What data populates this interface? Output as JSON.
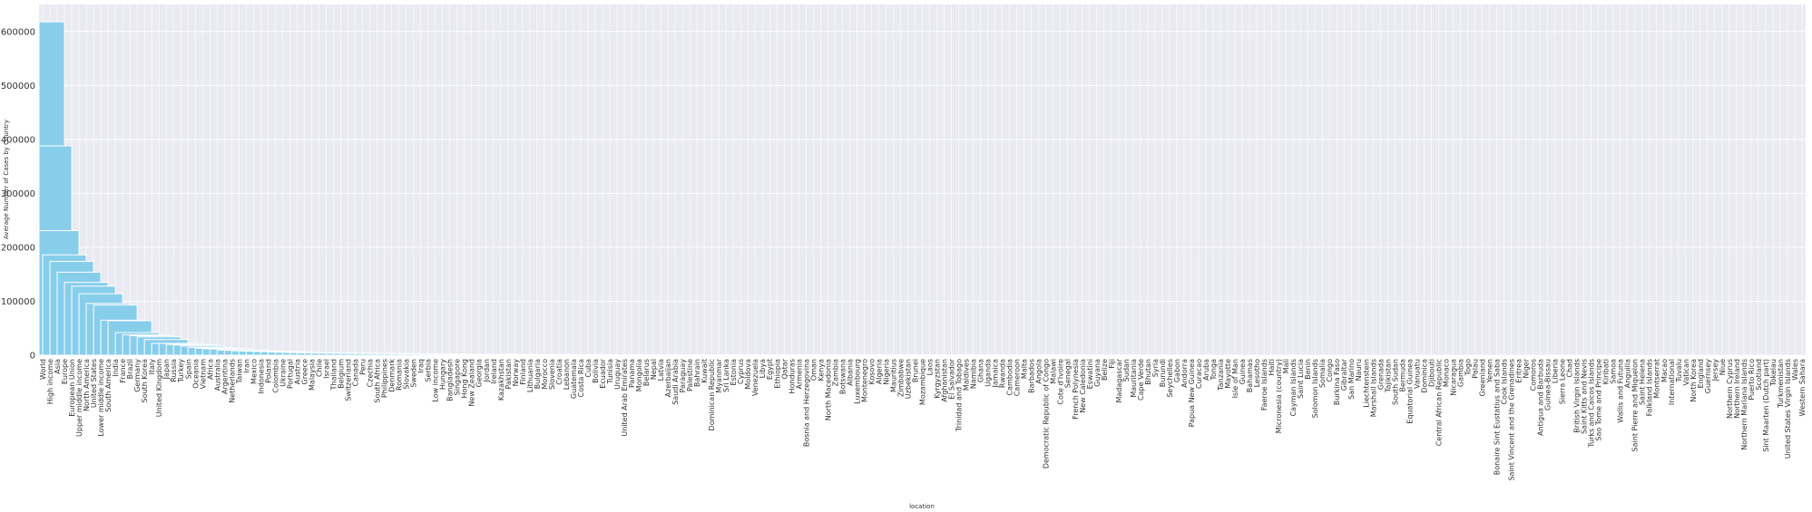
{
  "chart_data": {
    "type": "bar",
    "title": "",
    "xlabel": "location",
    "ylabel": "Average Number of Cases by Country",
    "ylim": [
      0,
      650000
    ],
    "yticks": [
      0,
      100000,
      200000,
      300000,
      400000,
      500000,
      600000
    ],
    "grid": true,
    "colors": {
      "bar": "#87CEEB",
      "bar_edge": "#ffffff",
      "plot_bg": "#EAEAF2",
      "grid": "#ffffff"
    },
    "categories": [
      "World",
      "High income",
      "Asia",
      "Europe",
      "European Union",
      "Upper middle income",
      "North America",
      "United States",
      "Lower middle income",
      "South America",
      "India",
      "France",
      "Brazil",
      "Germany",
      "South Korea",
      "Italy",
      "United Kingdom",
      "Japan",
      "Russia",
      "Turkey",
      "Spain",
      "Oceania",
      "Vietnam",
      "Africa",
      "Australia",
      "Argentina",
      "Netherlands",
      "Taiwan",
      "Iran",
      "Mexico",
      "Indonesia",
      "Poland",
      "Colombia",
      "Ukraine",
      "Portugal",
      "Austria",
      "Greece",
      "Malaysia",
      "Chile",
      "Israel",
      "Thailand",
      "Belgium",
      "Switzerland",
      "Canada",
      "Peru",
      "Czechia",
      "South Africa",
      "Philippines",
      "Denmark",
      "Romania",
      "Slovakia",
      "Sweden",
      "Iraq",
      "Serbia",
      "Low income",
      "Hungary",
      "Bangladesh",
      "Singapore",
      "Hong Kong",
      "New Zealand",
      "Georgia",
      "Jordan",
      "Ireland",
      "Kazakhstan",
      "Pakistan",
      "Norway",
      "Finland",
      "Lithuania",
      "Bulgaria",
      "Morocco",
      "Slovenia",
      "Croatia",
      "Lebanon",
      "Guatemala",
      "Costa Rica",
      "Cuba",
      "Bolivia",
      "Ecuador",
      "Tunisia",
      "Uruguay",
      "United Arab Emirates",
      "Panama",
      "Mongolia",
      "Belarus",
      "Nepal",
      "Latvia",
      "Azerbaijan",
      "Saudi Arabia",
      "Paraguay",
      "Palestine",
      "Bahrain",
      "Kuwait",
      "Dominican Republic",
      "Myanmar",
      "Sri Lanka",
      "Estonia",
      "Cyprus",
      "Moldova",
      "Venezuela",
      "Libya",
      "Egypt",
      "Ethiopia",
      "Qatar",
      "Honduras",
      "Armenia",
      "Bosnia and Herzegovina",
      "Oman",
      "Kenya",
      "North Macedonia",
      "Zambia",
      "Botswana",
      "Albania",
      "Luxembourg",
      "Montenegro",
      "Kosovo",
      "Algeria",
      "Nigeria",
      "Mauritius",
      "Zimbabwe",
      "Uzbekistan",
      "Brunei",
      "Mozambique",
      "Laos",
      "Kyrgyzstan",
      "Afghanistan",
      "El Salvador",
      "Trinidad and Tobago",
      "Maldives",
      "Namibia",
      "Ghana",
      "Uganda",
      "Jamaica",
      "Rwanda",
      "Cambodia",
      "Cameroon",
      "Malta",
      "Barbados",
      "Angola",
      "Democratic Republic of Congo",
      "Malawi",
      "Cote d'Ivoire",
      "Senegal",
      "French Polynesia",
      "New Caledonia",
      "Eswatini",
      "Guyana",
      "Belize",
      "Fiji",
      "Madagascar",
      "Sudan",
      "Mauritania",
      "Cape Verde",
      "Bhutan",
      "Syria",
      "Burundi",
      "Seychelles",
      "Gabon",
      "Andorra",
      "Papua New Guinea",
      "Curacao",
      "Aruba",
      "Tonga",
      "Tanzania",
      "Mayotte",
      "Isle of Man",
      "Guinea",
      "Bahamas",
      "Lesotho",
      "Faeroe Islands",
      "Haiti",
      "Micronesia (country)",
      "Mali",
      "Cayman Islands",
      "Saint Lucia",
      "Benin",
      "Solomon Islands",
      "Somalia",
      "Congo",
      "Burkina Faso",
      "Gibraltar",
      "San Marino",
      "Nauru",
      "Liechtenstein",
      "Marshall Islands",
      "Grenada",
      "Tajikistan",
      "South Sudan",
      "Bermuda",
      "Equatorial Guinea",
      "Vanuatu",
      "Dominica",
      "Djibouti",
      "Central African Republic",
      "Monaco",
      "Nicaragua",
      "Gambia",
      "Togo",
      "Palau",
      "Greenland",
      "Yemen",
      "Bonaire Sint Eustatius and Saba",
      "Cook Islands",
      "Saint Vincent and the Grenadines",
      "Eritrea",
      "Niger",
      "Comoros",
      "Antigua and Barbuda",
      "Guinea-Bissau",
      "Liberia",
      "Sierra Leone",
      "Chad",
      "British Virgin Islands",
      "Saint Kitts and Nevis",
      "Turks and Caicos Islands",
      "Sao Tome and Principe",
      "Kiribati",
      "Samoa",
      "Wallis and Futuna",
      "Anguilla",
      "Saint Pierre and Miquelon",
      "Saint Helena",
      "Falkland Islands",
      "Montserrat",
      "Macao",
      "International",
      "Tuvalu",
      "Vatican",
      "North Korea",
      "England",
      "Guernsey",
      "Jersey",
      "Niue",
      "Northern Cyprus",
      "Northern Ireland",
      "Northern Mariana Islands",
      "Puerto Rico",
      "Scotland",
      "Sint Maarten (Dutch part)",
      "Tokelau",
      "Turkmenistan",
      "United States Virgin Islands",
      "Wales",
      "Western Sahara"
    ],
    "values": [
      618000,
      388000,
      231000,
      186000,
      174000,
      154000,
      135000,
      128000,
      114000,
      96000,
      93000,
      65000,
      64000,
      42000,
      38000,
      36000,
      34000,
      29000,
      22000,
      22000,
      20000,
      19000,
      17000,
      14500,
      13000,
      12000,
      11500,
      9500,
      9000,
      8200,
      7800,
      7400,
      7000,
      6700,
      6000,
      5600,
      5200,
      4900,
      4500,
      4300,
      4100,
      4000,
      3800,
      3600,
      3500,
      3300,
      3200,
      3000,
      2900,
      2800,
      2700,
      2500,
      2300,
      2200,
      2100,
      2000,
      1900,
      1800,
      1700,
      1600,
      1550,
      1500,
      1450,
      1400,
      1350,
      1300,
      1250,
      1200,
      1150,
      1100,
      1050,
      1000,
      980,
      960,
      940,
      920,
      900,
      880,
      860,
      840,
      820,
      800,
      780,
      760,
      740,
      720,
      700,
      680,
      660,
      640,
      620,
      600,
      580,
      560,
      540,
      520,
      500,
      480,
      460,
      440,
      420,
      400,
      390,
      380,
      370,
      360,
      350,
      340,
      330,
      320,
      310,
      300,
      290,
      280,
      270,
      260,
      250,
      240,
      230,
      220,
      210,
      200,
      195,
      190,
      185,
      180,
      175,
      170,
      165,
      160,
      155,
      150,
      145,
      140,
      135,
      130,
      125,
      120,
      115,
      110,
      105,
      100,
      97,
      94,
      91,
      88,
      85,
      82,
      79,
      76,
      73,
      70,
      67,
      64,
      61,
      58,
      55,
      52,
      49,
      46,
      44,
      42,
      40,
      38,
      36,
      34,
      32,
      30,
      28,
      26,
      25,
      24,
      23,
      22,
      21,
      20,
      19,
      18,
      17,
      16,
      15,
      14,
      13,
      12,
      11,
      10,
      9.5,
      9,
      8.5,
      8,
      7.5,
      7,
      6.5,
      6,
      5.5,
      5,
      4.7,
      4.4,
      4.1,
      3.8,
      3.5,
      3.2,
      3,
      2.8,
      2.6,
      2.4,
      2.2,
      2,
      1.8,
      1.6,
      1.5,
      1.4,
      1.3,
      1.2,
      1.1,
      1,
      0.9,
      0.8,
      0.7,
      0.6,
      0.5,
      0.4,
      0.3,
      0.2,
      0.1,
      0.1,
      0,
      0,
      0,
      0,
      0,
      0,
      0,
      0,
      0,
      0,
      0,
      0,
      0,
      0,
      0,
      0,
      0
    ]
  }
}
